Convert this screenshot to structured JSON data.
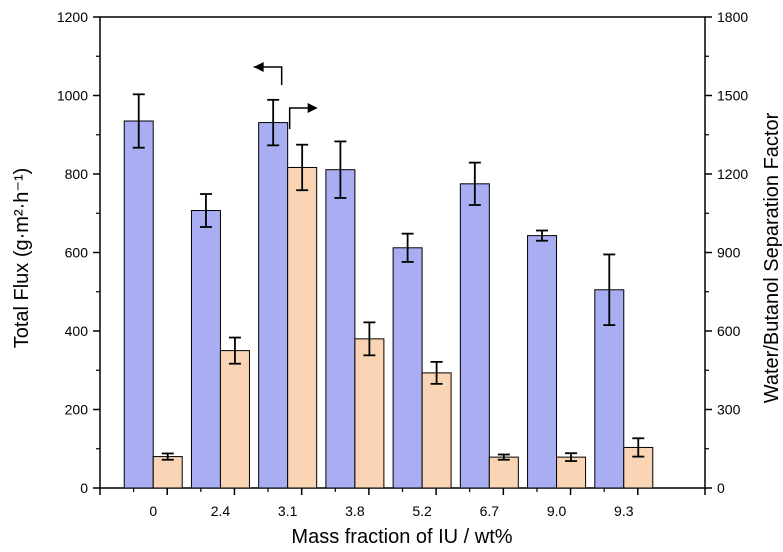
{
  "chart_data": {
    "type": "bar",
    "xlabel": "Mass fraction of IU / wt%",
    "ylabel": "Total Flux (g·m²·h⁻¹)",
    "ylabel_right": "Water/Butanol Separation Factor",
    "categories": [
      "0",
      "2.4",
      "3.1",
      "3.8",
      "5.2",
      "6.7",
      "9.0",
      "9.3"
    ],
    "ylim": [
      0,
      1200
    ],
    "ylim_right": [
      0,
      1800
    ],
    "yticks": [
      "0",
      "200",
      "400",
      "600",
      "800",
      "1000",
      "1200"
    ],
    "yticks_right": [
      "0",
      "300",
      "600",
      "900",
      "1200",
      "1500",
      "1800"
    ],
    "series": [
      {
        "axis": "left",
        "color": "#a9adf2",
        "values": [
          935,
          707,
          931,
          811,
          612,
          775,
          643,
          505
        ],
        "errors": [
          68,
          42,
          58,
          72,
          36,
          54,
          13,
          90
        ]
      },
      {
        "axis": "right",
        "color": "#f9d5b5",
        "values": [
          120,
          525,
          1225,
          570,
          440,
          118,
          118,
          155
        ],
        "errors": [
          12,
          50,
          87,
          63,
          42,
          10,
          15,
          35
        ]
      }
    ],
    "annotations": [
      "left-arrow over 3.1 flux bar",
      "right-arrow over 3.1 separation factor bar"
    ]
  }
}
